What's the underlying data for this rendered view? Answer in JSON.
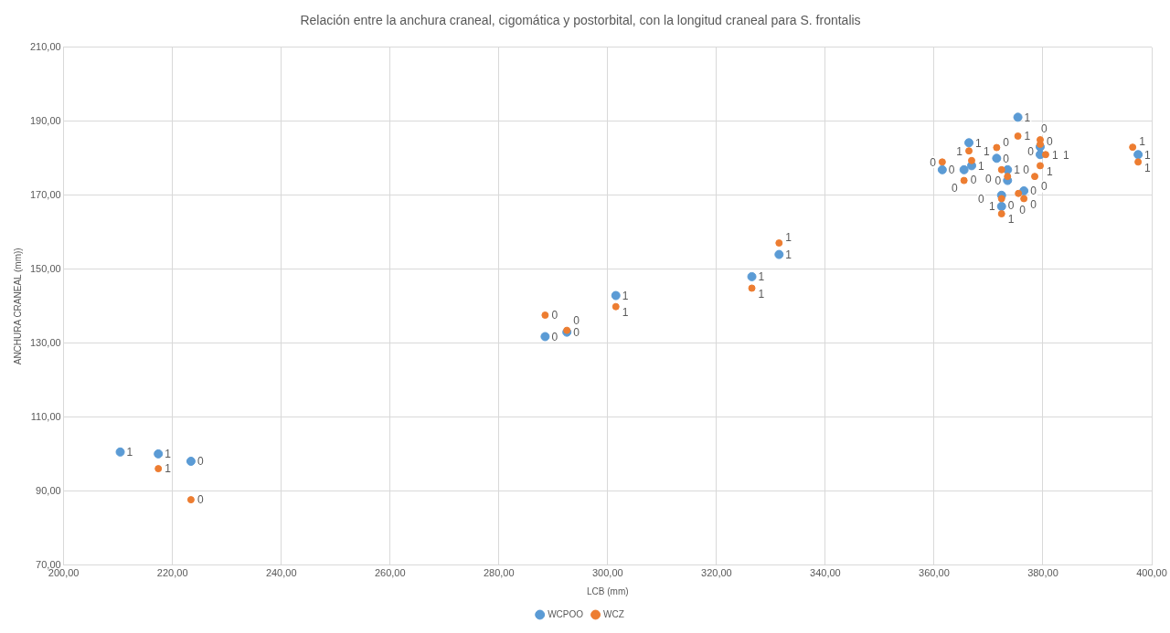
{
  "chart_data": {
    "type": "scatter",
    "title": "Relación entre la anchura craneal, cigomática y postorbital, con la longitud craneal para S. frontalis",
    "xlabel": "LCB (mm)",
    "ylabel": "ANCHURA CRANEAL (mm))",
    "xlim": [
      200,
      400
    ],
    "ylim": [
      70,
      210
    ],
    "xticks": [
      {
        "value": 200,
        "label": "200,00"
      },
      {
        "value": 220,
        "label": "220,00"
      },
      {
        "value": 240,
        "label": "240,00"
      },
      {
        "value": 260,
        "label": "260,00"
      },
      {
        "value": 280,
        "label": "280,00"
      },
      {
        "value": 300,
        "label": "300,00"
      },
      {
        "value": 320,
        "label": "320,00"
      },
      {
        "value": 340,
        "label": "340,00"
      },
      {
        "value": 360,
        "label": "360,00"
      },
      {
        "value": 380,
        "label": "380,00"
      },
      {
        "value": 400,
        "label": "400,00"
      }
    ],
    "yticks": [
      {
        "value": 70,
        "label": "70,00"
      },
      {
        "value": 90,
        "label": "90,00"
      },
      {
        "value": 110,
        "label": "110,00"
      },
      {
        "value": 130,
        "label": "130,00"
      },
      {
        "value": 150,
        "label": "150,00"
      },
      {
        "value": 170,
        "label": "170,00"
      },
      {
        "value": 190,
        "label": "190,00"
      },
      {
        "value": 210,
        "label": "210,00"
      }
    ],
    "grid": true,
    "legend": "bottom",
    "marker": "circle",
    "series": [
      {
        "name": "WCPOO",
        "color": "#5b9bd5",
        "x": [
          210.4,
          217.4,
          223.4,
          288.5,
          292.5,
          301.5,
          326.5,
          331.5,
          375.4,
          366.4,
          379.5,
          371.5,
          366.9,
          361.5,
          365.5,
          373.5,
          373.5,
          372.4,
          376.5,
          372.4,
          379.5,
          397.5
        ],
        "values": [
          100.6,
          100.1,
          98.1,
          131.8,
          133.0,
          142.9,
          148.0,
          154.0,
          191.1,
          184.2,
          183.1,
          180.0,
          178.0,
          176.9,
          176.9,
          176.9,
          174.0,
          170.0,
          171.2,
          167.0,
          181.0,
          181.0
        ]
      },
      {
        "name": "WCZ",
        "color": "#ed7d31",
        "x": [
          217.4,
          223.4,
          288.5,
          292.5,
          301.5,
          326.5,
          331.5,
          375.4,
          379.5,
          379.5,
          371.5,
          366.4,
          366.9,
          361.5,
          380.5,
          372.4,
          379.5,
          373.5,
          378.5,
          365.5,
          375.5,
          372.4,
          376.5,
          372.4,
          396.5,
          397.5
        ],
        "values": [
          96.1,
          87.7,
          137.6,
          133.5,
          139.9,
          144.9,
          157.1,
          186.0,
          185.0,
          183.8,
          182.9,
          182.0,
          179.4,
          179.0,
          181.0,
          176.9,
          178.0,
          175.1,
          175.1,
          174.0,
          170.5,
          169.1,
          169.1,
          165.0,
          183.0,
          179.0
        ]
      }
    ],
    "annotations": [
      {
        "text": "1",
        "x": 210.4,
        "y": 100.6
      },
      {
        "text": "1",
        "x": 217.4,
        "y": 100.1
      },
      {
        "text": "0",
        "x": 223.4,
        "y": 98.1
      },
      {
        "text": "0",
        "x": 288.5,
        "y": 131.8
      },
      {
        "text": "0",
        "x": 292.5,
        "y": 133.0
      },
      {
        "text": "1",
        "x": 301.5,
        "y": 142.9
      },
      {
        "text": "1",
        "x": 326.5,
        "y": 148.0
      },
      {
        "text": "1",
        "x": 331.5,
        "y": 154.0
      },
      {
        "text": "1",
        "x": 375.4,
        "y": 191.1
      },
      {
        "text": "1",
        "x": 366.4,
        "y": 184.2
      },
      {
        "text": "0",
        "x": 379.5,
        "y": 183.1
      },
      {
        "text": "0",
        "x": 371.5,
        "y": 180.0
      },
      {
        "text": "1",
        "x": 366.9,
        "y": 178.0
      },
      {
        "text": "0",
        "x": 361.5,
        "y": 176.9
      },
      {
        "text": "0",
        "x": 365.5,
        "y": 176.9
      },
      {
        "text": "1",
        "x": 373.5,
        "y": 176.9
      },
      {
        "text": "0",
        "x": 373.5,
        "y": 174.0
      },
      {
        "text": "0",
        "x": 372.4,
        "y": 170.0
      },
      {
        "text": "0",
        "x": 376.5,
        "y": 171.2
      },
      {
        "text": "1",
        "x": 372.4,
        "y": 167.0
      },
      {
        "text": "1",
        "x": 379.5,
        "y": 181.0
      },
      {
        "text": "1",
        "x": 397.5,
        "y": 181.0
      },
      {
        "text": "1",
        "x": 217.4,
        "y": 96.1
      },
      {
        "text": "0",
        "x": 223.4,
        "y": 87.7
      },
      {
        "text": "0",
        "x": 288.5,
        "y": 137.6
      },
      {
        "text": "0",
        "x": 292.5,
        "y": 133.5
      },
      {
        "text": "1",
        "x": 301.5,
        "y": 139.9
      },
      {
        "text": "1",
        "x": 326.5,
        "y": 144.9
      },
      {
        "text": "1",
        "x": 331.5,
        "y": 157.1
      },
      {
        "text": "1",
        "x": 375.4,
        "y": 186.0
      },
      {
        "text": "0",
        "x": 379.5,
        "y": 185.0
      },
      {
        "text": "0",
        "x": 379.5,
        "y": 183.8
      },
      {
        "text": "0",
        "x": 371.5,
        "y": 182.9
      },
      {
        "text": "1",
        "x": 366.4,
        "y": 182.0
      },
      {
        "text": "1",
        "x": 366.9,
        "y": 179.4
      },
      {
        "text": "0",
        "x": 361.5,
        "y": 179.0
      },
      {
        "text": "1",
        "x": 380.5,
        "y": 181.0
      },
      {
        "text": "0",
        "x": 372.4,
        "y": 176.9
      },
      {
        "text": "1",
        "x": 379.5,
        "y": 178.0
      },
      {
        "text": "0",
        "x": 373.5,
        "y": 175.1
      },
      {
        "text": "0",
        "x": 378.5,
        "y": 175.1
      },
      {
        "text": "0",
        "x": 365.5,
        "y": 174.0
      },
      {
        "text": "0",
        "x": 375.5,
        "y": 170.5
      },
      {
        "text": "0",
        "x": 372.4,
        "y": 169.1
      },
      {
        "text": "0",
        "x": 376.5,
        "y": 169.1
      },
      {
        "text": "1",
        "x": 372.4,
        "y": 165.0
      },
      {
        "text": "1",
        "x": 396.5,
        "y": 183.0
      },
      {
        "text": "1",
        "x": 397.5,
        "y": 179.0
      }
    ]
  }
}
